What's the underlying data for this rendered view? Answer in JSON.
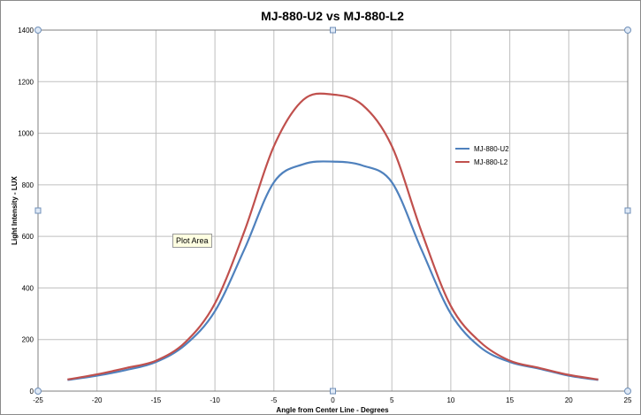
{
  "chart_data": {
    "type": "line",
    "title": "MJ-880-U2 vs MJ-880-L2",
    "xlabel": "Angle from Center Line - Degrees",
    "ylabel": "Light Intensity - LUX",
    "xlim": [
      -25,
      25
    ],
    "ylim": [
      0,
      1400
    ],
    "xticks": [
      -25,
      -20,
      -15,
      -10,
      -5,
      0,
      5,
      10,
      15,
      20,
      25
    ],
    "yticks": [
      0,
      200,
      400,
      600,
      800,
      1000,
      1200,
      1400
    ],
    "grid": true,
    "legend": "right",
    "x": [
      -22.5,
      -20,
      -17.5,
      -15,
      -12.5,
      -10,
      -7.5,
      -5,
      -2.5,
      0,
      2.5,
      5,
      7.5,
      10,
      12.5,
      15,
      17.5,
      20,
      22.5
    ],
    "series": [
      {
        "name": "MJ-880-U2",
        "color": "#4f81bd",
        "values": [
          43,
          60,
          82,
          113,
          180,
          310,
          550,
          810,
          880,
          890,
          875,
          810,
          550,
          300,
          170,
          113,
          87,
          60,
          43
        ]
      },
      {
        "name": "MJ-880-L2",
        "color": "#c0504d",
        "values": [
          45,
          65,
          90,
          118,
          190,
          340,
          620,
          950,
          1130,
          1150,
          1110,
          950,
          620,
          330,
          190,
          118,
          90,
          63,
          45
        ]
      }
    ]
  },
  "tooltip": {
    "text": "Plot Area"
  }
}
